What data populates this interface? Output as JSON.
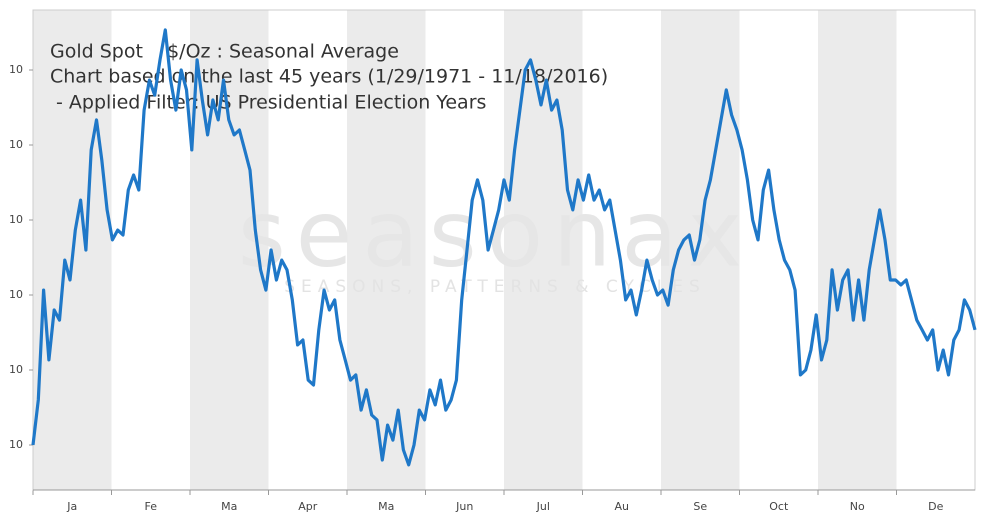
{
  "chart_data": {
    "type": "line",
    "title": "Gold Spot    $/Oz : Seasonal Average",
    "subtitle": "Chart based on the last 45 years (1/29/1971 - 11/18/2016)",
    "filter": " - Applied Filter: US Presidential Election Years",
    "watermark": "seasonax",
    "watermark_tagline": "SEASONS, PATTERNS & CYCLES",
    "months": [
      "Ja",
      "Fe",
      "Ma",
      "Apr",
      "Ma",
      "Jun",
      "Jul",
      "Au",
      "Se",
      "Oct",
      "No",
      "De"
    ],
    "ylim": [
      98.8,
      111.6
    ],
    "yticks": [
      {
        "value": 100,
        "label": "10"
      },
      {
        "value": 102,
        "label": "10"
      },
      {
        "value": 104,
        "label": "10"
      },
      {
        "value": 106,
        "label": "10"
      },
      {
        "value": 108,
        "label": "10"
      },
      {
        "value": 110,
        "label": "10"
      }
    ],
    "series": [
      {
        "name": "Gold Spot",
        "color": "#1f78c8",
        "values": [
          100,
          101.2,
          104.13,
          102.27,
          103.6,
          103.33,
          104.93,
          104.4,
          105.73,
          106.53,
          105.2,
          107.87,
          108.67,
          107.6,
          106.27,
          105.47,
          105.73,
          105.6,
          106.8,
          107.2,
          106.8,
          108.93,
          109.73,
          109.33,
          110.27,
          111.07,
          109.73,
          108.93,
          110,
          109.47,
          107.87,
          110.27,
          109.2,
          108.27,
          109.2,
          108.67,
          109.73,
          108.67,
          108.27,
          108.4,
          107.87,
          107.33,
          105.73,
          104.67,
          104.13,
          105.2,
          104.4,
          104.93,
          104.67,
          103.87,
          102.67,
          102.8,
          101.73,
          101.6,
          103.07,
          104.13,
          103.6,
          103.87,
          102.8,
          102.27,
          101.73,
          101.87,
          100.93,
          101.47,
          100.8,
          100.67,
          99.6,
          100.53,
          100.13,
          100.93,
          99.87,
          99.47,
          100,
          100.93,
          100.67,
          101.47,
          101.07,
          101.73,
          100.93,
          101.2,
          101.73,
          103.87,
          105.2,
          106.53,
          107.07,
          106.53,
          105.2,
          105.73,
          106.27,
          107.07,
          106.53,
          107.87,
          108.93,
          110,
          110.27,
          109.73,
          109.07,
          109.73,
          108.93,
          109.2,
          108.4,
          106.8,
          106.27,
          107.07,
          106.53,
          107.2,
          106.53,
          106.8,
          106.27,
          106.53,
          105.73,
          104.93,
          103.87,
          104.13,
          103.47,
          104.13,
          104.93,
          104.4,
          104,
          104.13,
          103.73,
          104.67,
          105.2,
          105.47,
          105.6,
          104.93,
          105.47,
          106.53,
          107.07,
          107.87,
          108.67,
          109.47,
          108.8,
          108.4,
          107.87,
          107.07,
          106,
          105.47,
          106.8,
          107.33,
          106.27,
          105.47,
          104.93,
          104.67,
          104.13,
          101.87,
          102,
          102.53,
          103.47,
          102.27,
          102.8,
          104.67,
          103.6,
          104.4,
          104.67,
          103.33,
          104.4,
          103.33,
          104.67,
          105.47,
          106.27,
          105.47,
          104.4,
          104.4,
          104.27,
          104.4,
          103.87,
          103.33,
          103.07,
          102.8,
          103.07,
          102,
          102.53,
          101.87,
          102.8,
          103.07,
          103.87,
          103.6,
          103.07
        ]
      }
    ]
  }
}
